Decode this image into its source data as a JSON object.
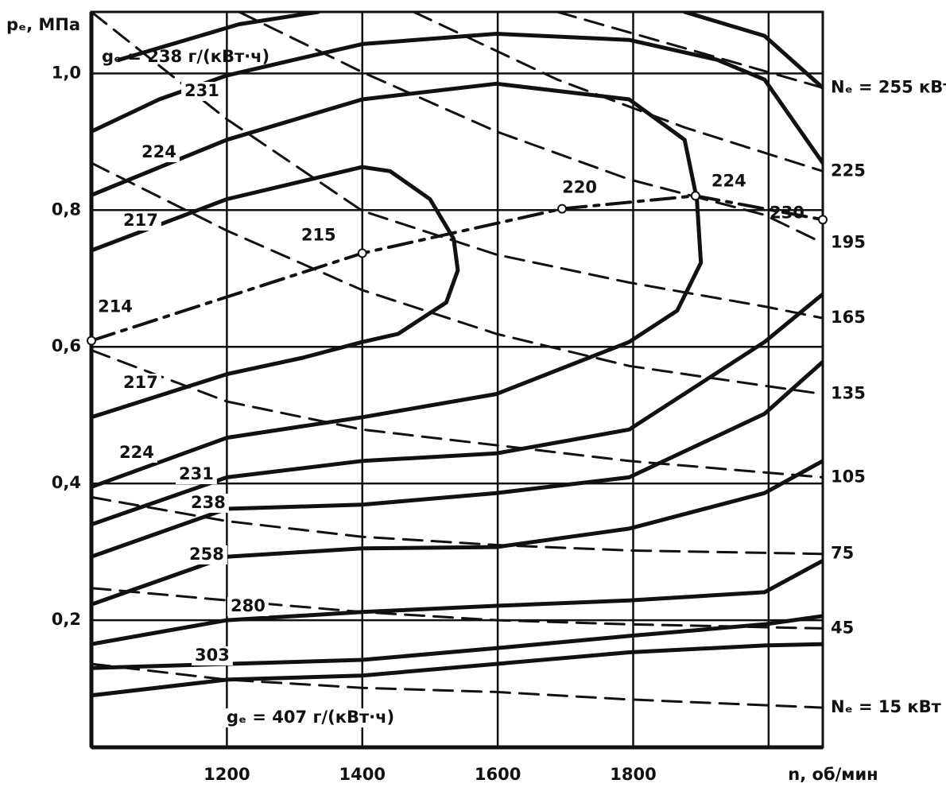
{
  "chart_data": {
    "type": "line",
    "y_label": "pₑ, МПа",
    "x_label": "n, об/мин",
    "annotations": [
      "gₑ = 238 г/(кВт·ч)"
    ],
    "xlim": [
      1000,
      2080
    ],
    "ylim": [
      0.014,
      1.09
    ],
    "xticks": [
      1200,
      1400,
      1600,
      1800,
      {
        "value": 2000,
        "label": null
      }
    ],
    "yticks": [
      {
        "value": 0.2,
        "label": "0,2"
      },
      {
        "value": 0.4,
        "label": "0,4"
      },
      {
        "value": 0.6,
        "label": "0,6"
      },
      {
        "value": 0.8,
        "label": "0,8"
      },
      {
        "value": 1.0,
        "label": "1,0"
      }
    ],
    "grid": true,
    "series": [
      {
        "name": "217",
        "style": "solid",
        "color": "#111",
        "x": [
          1000,
          1200,
          1400,
          1441,
          1500,
          1535,
          1541,
          1524,
          1453,
          1400,
          1312,
          1200,
          1000
        ],
        "values": [
          0.741,
          0.816,
          0.863,
          0.857,
          0.816,
          0.758,
          0.712,
          0.665,
          0.619,
          0.607,
          0.584,
          0.56,
          0.497
        ]
      },
      {
        "name": "224",
        "style": "solid",
        "color": "#111",
        "x": [
          1000,
          1200,
          1400,
          1598,
          1794,
          1876,
          1894,
          1900,
          1865,
          1794,
          1598,
          1400,
          1200,
          1000
        ],
        "values": [
          0.822,
          0.903,
          0.962,
          0.985,
          0.962,
          0.903,
          0.816,
          0.723,
          0.653,
          0.607,
          0.531,
          0.497,
          0.467,
          0.395
        ]
      },
      {
        "name": "231",
        "style": "solid",
        "color": "#111",
        "x": [
          1000,
          1100,
          1200,
          1400,
          1598,
          1794,
          1924,
          1994,
          2080,
          null,
          1000,
          1200,
          1400,
          1598,
          1794,
          1994,
          2080
        ],
        "values": [
          0.915,
          0.962,
          0.997,
          1.043,
          1.058,
          1.049,
          1.02,
          0.991,
          0.869,
          null,
          0.34,
          0.409,
          0.433,
          0.444,
          0.479,
          0.607,
          0.677
        ]
      },
      {
        "name": "238",
        "style": "solid",
        "color": "#111",
        "x": [
          1041,
          1218,
          1335,
          null,
          1876,
          1994,
          2080,
          null,
          1000,
          1200,
          1400,
          1598,
          1794,
          1994,
          2080
        ],
        "values": [
          1.02,
          1.072,
          1.09,
          null,
          1.09,
          1.055,
          0.979,
          null,
          0.293,
          0.363,
          0.369,
          0.386,
          0.409,
          0.502,
          0.578
        ]
      },
      {
        "name": "258",
        "style": "solid",
        "color": "#111",
        "x": [
          1000,
          1200,
          1400,
          1598,
          1794,
          1994,
          2080
        ],
        "values": [
          0.223,
          0.293,
          0.305,
          0.307,
          0.334,
          0.386,
          0.433
        ]
      },
      {
        "name": "280",
        "style": "solid",
        "color": "#111",
        "x": [
          1000,
          1200,
          1400,
          1598,
          1794,
          1994,
          2080
        ],
        "values": [
          0.165,
          0.2,
          0.212,
          0.221,
          0.229,
          0.241,
          0.287
        ]
      },
      {
        "name": "303",
        "style": "solid",
        "color": "#111",
        "x": [
          1000,
          1200,
          1400,
          1598,
          1794,
          1994,
          2080
        ],
        "values": [
          0.13,
          0.136,
          0.142,
          0.159,
          0.177,
          0.194,
          0.206
        ]
      },
      {
        "name": "gₑ = 407 г/(кВт·ч)",
        "style": "solid",
        "color": "#111",
        "x": [
          1000,
          1200,
          1400,
          1598,
          1794,
          1994,
          2080
        ],
        "values": [
          0.09,
          0.113,
          0.119,
          0.136,
          0.153,
          0.163,
          0.165
        ]
      },
      {
        "name": "Nₑ = 255 кВт",
        "style": "dashed",
        "color": "#111",
        "x": [
          1688,
          1876,
          2080
        ],
        "values": [
          1.09,
          1.037,
          0.979
        ]
      },
      {
        "name": "225",
        "style": "dashed",
        "color": "#111",
        "x": [
          1476,
          1688,
          1876,
          2080
        ],
        "values": [
          1.09,
          0.991,
          0.921,
          0.857
        ]
      },
      {
        "name": "195",
        "style": "dashed",
        "color": "#111",
        "x": [
          1218,
          1400,
          1598,
          1794,
          1994,
          2080
        ],
        "values": [
          1.09,
          1.002,
          0.915,
          0.845,
          0.793,
          0.752
        ]
      },
      {
        "name": "165",
        "style": "dashed",
        "color": "#111",
        "x": [
          1000,
          1200,
          1400,
          1598,
          1794,
          1994,
          2080
        ],
        "values": [
          1.09,
          0.933,
          0.799,
          0.735,
          0.694,
          0.659,
          0.642
        ]
      },
      {
        "name": "135",
        "style": "dashed",
        "color": "#111",
        "x": [
          1000,
          1200,
          1400,
          1598,
          1794,
          1994,
          2080
        ],
        "values": [
          0.869,
          0.77,
          0.683,
          0.619,
          0.572,
          0.543,
          0.531
        ]
      },
      {
        "name": "105",
        "style": "dashed",
        "color": "#111",
        "x": [
          1000,
          1200,
          1400,
          1598,
          1794,
          2080
        ],
        "values": [
          0.595,
          0.52,
          0.479,
          0.456,
          0.433,
          0.409
        ]
      },
      {
        "name": "75",
        "style": "dashed",
        "color": "#111",
        "x": [
          1000,
          1200,
          1400,
          1598,
          1794,
          2080
        ],
        "values": [
          0.38,
          0.345,
          0.322,
          0.31,
          0.302,
          0.297
        ]
      },
      {
        "name": "45",
        "style": "dashed",
        "color": "#111",
        "x": [
          1000,
          1200,
          1400,
          1598,
          1794,
          2080
        ],
        "values": [
          0.247,
          0.229,
          0.212,
          0.2,
          0.194,
          0.188
        ]
      },
      {
        "name": "Nₑ = 15 кВт",
        "style": "dashed",
        "color": "#111",
        "x": [
          1000,
          1200,
          1400,
          1598,
          1794,
          2080
        ],
        "values": [
          0.136,
          0.113,
          0.101,
          0.095,
          0.084,
          0.072
        ]
      },
      {
        "style": "dashdot",
        "color": "#111",
        "x": [
          1000,
          1400,
          1695,
          1892,
          2080
        ],
        "values": [
          0.609,
          0.737,
          0.802,
          0.821,
          0.786
        ],
        "point_labels": [
          214,
          215,
          220,
          224,
          230
        ]
      }
    ]
  }
}
